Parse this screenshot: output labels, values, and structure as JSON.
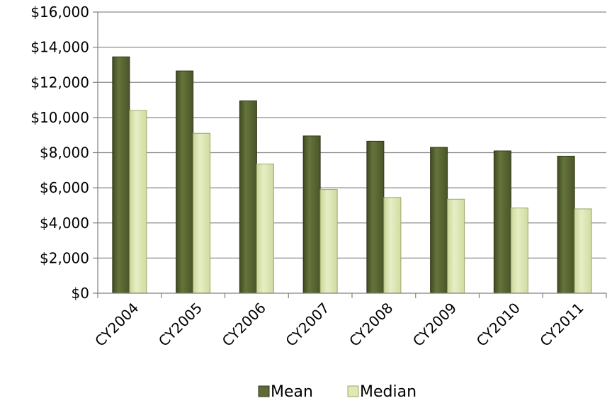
{
  "chart_data": {
    "type": "bar",
    "title": "",
    "xlabel": "",
    "ylabel": "",
    "categories": [
      "CY2004",
      "CY2005",
      "CY2006",
      "CY2007",
      "CY2008",
      "CY2009",
      "CY2010",
      "CY2011"
    ],
    "series": [
      {
        "name": "Mean",
        "color": "#5e6b36",
        "values": [
          13450,
          12650,
          10950,
          8950,
          8650,
          8300,
          8100,
          7800
        ]
      },
      {
        "name": "Median",
        "color": "#dfe9b3",
        "values": [
          10400,
          9100,
          7350,
          5900,
          5450,
          5350,
          4850,
          4800
        ]
      }
    ],
    "ylim": [
      0,
      16000
    ],
    "yticks": [
      "$0",
      "$2,000",
      "$4,000",
      "$6,000",
      "$8,000",
      "$10,000",
      "$12,000",
      "$14,000",
      "$16,000"
    ],
    "ytick_step": 2000,
    "grid": true,
    "legend_position": "bottom"
  }
}
